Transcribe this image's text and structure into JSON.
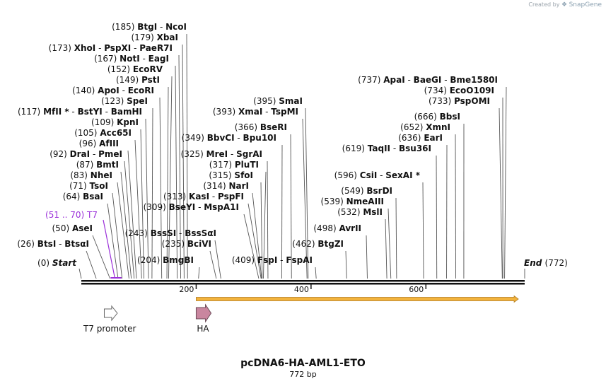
{
  "credit": {
    "prefix": "Created by",
    "brand": "SnapGene"
  },
  "plasmid": {
    "name": "pcDNA6-HA-AML1-ETO",
    "length_label": "772 bp",
    "length": 772
  },
  "ends": {
    "start_pos": "(0)",
    "start_label": "Start",
    "end_label": "End",
    "end_pos": "(772)"
  },
  "ruler": [
    {
      "label": "200",
      "value": 200
    },
    {
      "label": "400",
      "value": 400
    },
    {
      "label": "600",
      "value": 600
    }
  ],
  "sites": [
    {
      "pos": "(185)",
      "enzymes": [
        "BtgI",
        "NcoI"
      ],
      "bp": 185
    },
    {
      "pos": "(179)",
      "enzymes": [
        "XbaI"
      ],
      "bp": 179
    },
    {
      "pos": "(173)",
      "enzymes": [
        "XhoI",
        "PspXI",
        "PaeR7I"
      ],
      "bp": 173
    },
    {
      "pos": "(167)",
      "enzymes": [
        "NotI",
        "EagI"
      ],
      "bp": 167
    },
    {
      "pos": "(152)",
      "enzymes": [
        "EcoRV"
      ],
      "bp": 152
    },
    {
      "pos": "(149)",
      "enzymes": [
        "PstI"
      ],
      "bp": 149
    },
    {
      "pos": "(140)",
      "enzymes": [
        "ApoI",
        "EcoRI"
      ],
      "bp": 140
    },
    {
      "pos": "(123)",
      "enzymes": [
        "SpeI"
      ],
      "bp": 123
    },
    {
      "pos": "(117)",
      "enzymes": [
        "MfII *",
        "BstYI",
        "BamHI"
      ],
      "bp": 117
    },
    {
      "pos": "(109)",
      "enzymes": [
        "KpnI"
      ],
      "bp": 109
    },
    {
      "pos": "(105)",
      "enzymes": [
        "Acc65I"
      ],
      "bp": 105
    },
    {
      "pos": "(96)",
      "enzymes": [
        "AfIII"
      ],
      "bp": 96
    },
    {
      "pos": "(92)",
      "enzymes": [
        "DraI",
        "PmeI"
      ],
      "bp": 92
    },
    {
      "pos": "(87)",
      "enzymes": [
        "BmtI"
      ],
      "bp": 87
    },
    {
      "pos": "(83)",
      "enzymes": [
        "NheI"
      ],
      "bp": 83
    },
    {
      "pos": "(71)",
      "enzymes": [
        "TsoI"
      ],
      "bp": 71
    },
    {
      "pos": "(64)",
      "enzymes": [
        "BsaI"
      ],
      "bp": 64
    },
    {
      "pos": "(50)",
      "enzymes": [
        "AseI"
      ],
      "bp": 50
    },
    {
      "pos": "(26)",
      "enzymes": [
        "BtsI",
        "BtsαI"
      ],
      "bp": 26
    },
    {
      "pos": "(349)",
      "enzymes": [
        "BbvCI",
        "Bpu10I"
      ],
      "bp": 349
    },
    {
      "pos": "(325)",
      "enzymes": [
        "MreI",
        "SgrAI"
      ],
      "bp": 325
    },
    {
      "pos": "(317)",
      "enzymes": [
        "PluTI"
      ],
      "bp": 317
    },
    {
      "pos": "(315)",
      "enzymes": [
        "SfoI"
      ],
      "bp": 315
    },
    {
      "pos": "(314)",
      "enzymes": [
        "NarI"
      ],
      "bp": 314
    },
    {
      "pos": "(313)",
      "enzymes": [
        "KasI",
        "PspFI"
      ],
      "bp": 313
    },
    {
      "pos": "(309)",
      "enzymes": [
        "BseYI",
        "MspA1I"
      ],
      "bp": 309
    },
    {
      "pos": "(243)",
      "enzymes": [
        "BssSI",
        "BssSαI"
      ],
      "bp": 243
    },
    {
      "pos": "(235)",
      "enzymes": [
        "BciVI"
      ],
      "bp": 235
    },
    {
      "pos": "(204)",
      "enzymes": [
        "BmgBI"
      ],
      "bp": 204
    },
    {
      "pos": "(395)",
      "enzymes": [
        "SmaI"
      ],
      "bp": 395
    },
    {
      "pos": "(393)",
      "enzymes": [
        "XmaI",
        "TspMI"
      ],
      "bp": 393
    },
    {
      "pos": "(366)",
      "enzymes": [
        "BseRI"
      ],
      "bp": 366
    },
    {
      "pos": "(409)",
      "enzymes": [
        "FspI",
        "FspAI"
      ],
      "bp": 409
    },
    {
      "pos": "(462)",
      "enzymes": [
        "BtgZI"
      ],
      "bp": 462
    },
    {
      "pos": "(498)",
      "enzymes": [
        "AvrII"
      ],
      "bp": 498
    },
    {
      "pos": "(532)",
      "enzymes": [
        "MslI"
      ],
      "bp": 532
    },
    {
      "pos": "(539)",
      "enzymes": [
        "NmeAIII"
      ],
      "bp": 539
    },
    {
      "pos": "(549)",
      "enzymes": [
        "BsrDI"
      ],
      "bp": 549
    },
    {
      "pos": "(596)",
      "enzymes": [
        "CsiI",
        "SexAI *"
      ],
      "bp": 596
    },
    {
      "pos": "(619)",
      "enzymes": [
        "TaqII",
        "Bsu36I"
      ],
      "bp": 619
    },
    {
      "pos": "(636)",
      "enzymes": [
        "EarI"
      ],
      "bp": 636
    },
    {
      "pos": "(652)",
      "enzymes": [
        "XmnI"
      ],
      "bp": 652
    },
    {
      "pos": "(666)",
      "enzymes": [
        "BbsI"
      ],
      "bp": 666
    },
    {
      "pos": "(733)",
      "enzymes": [
        "PspOMI"
      ],
      "bp": 733
    },
    {
      "pos": "(734)",
      "enzymes": [
        "EcoO109I"
      ],
      "bp": 734
    },
    {
      "pos": "(737)",
      "enzymes": [
        "ApaI",
        "BaeGI",
        "Bme1580I"
      ],
      "bp": 737
    }
  ],
  "primer": {
    "range": "(51 .. 70)",
    "name": "T7",
    "color": "#9b30d9"
  },
  "features": {
    "t7": {
      "label": "T7 promoter",
      "start": 40,
      "end": 59
    },
    "ha": {
      "label": "HA",
      "start": 200,
      "end": 226,
      "color": "#c9869f"
    },
    "cds": {
      "start": 200,
      "end": 761,
      "color": "#f2b33d"
    }
  },
  "colors": {
    "line": "#555555",
    "backbone": "#111111"
  }
}
